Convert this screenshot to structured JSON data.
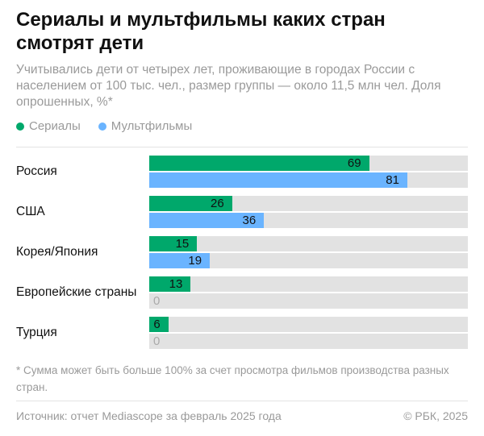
{
  "title": "Сериалы и мультфильмы каких стран смотрят дети",
  "subtitle": "Учитывались дети от четырех лет, проживающие в городах России с населением от 100 тыс. чел., размер группы — около 11,5 млн чел. Доля опрошенных, %*",
  "note": "* Сумма может быть больше 100% за счет просмотра фильмов производства разных стран.",
  "footer": {
    "source": "Источник: отчет Mediascope за февраль 2025 года",
    "copyright": "© РБК, 2025"
  },
  "colors": {
    "series1": "#00a86b",
    "series2": "#6ab4ff",
    "track": "#e2e2e2"
  },
  "chart_data": {
    "type": "bar",
    "orientation": "horizontal",
    "categories": [
      "Россия",
      "США",
      "Корея/Япония",
      "Европейские страны",
      "Турция"
    ],
    "series": [
      {
        "name": "Сериалы",
        "values": [
          69,
          26,
          15,
          13,
          6
        ]
      },
      {
        "name": "Мультфильмы",
        "values": [
          81,
          36,
          19,
          0,
          0
        ]
      }
    ],
    "xlim": [
      0,
      100
    ],
    "legend": "top-left",
    "grid": false
  }
}
